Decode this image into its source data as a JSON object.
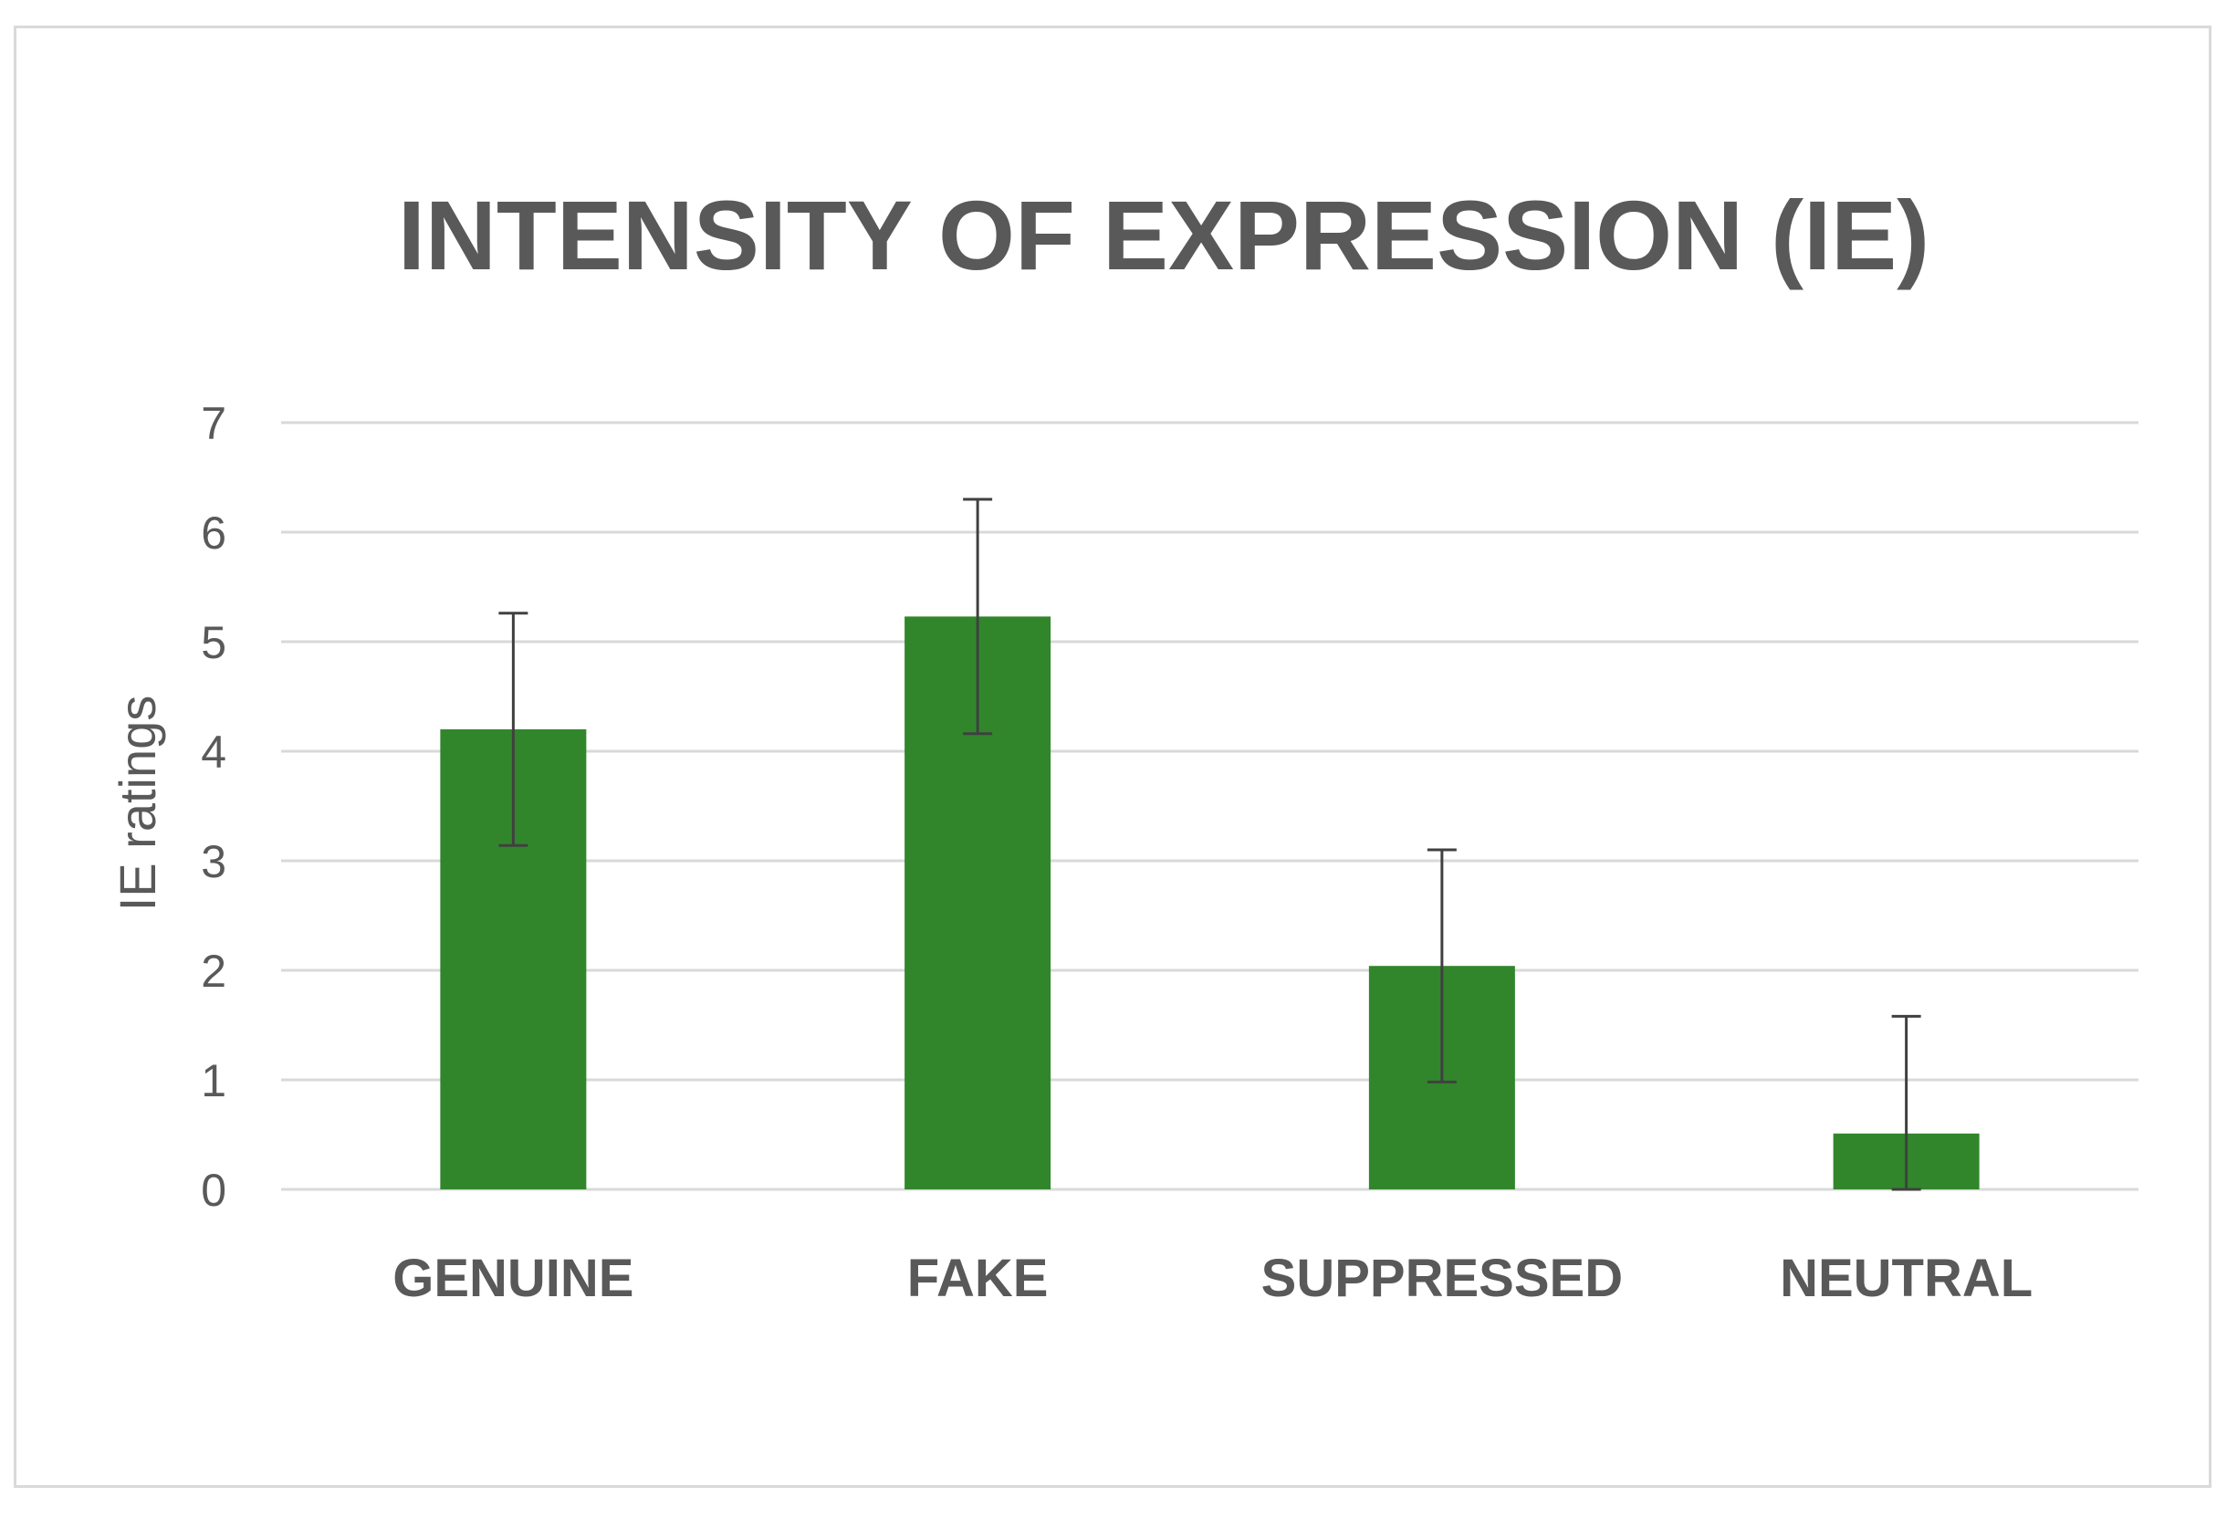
{
  "chart_data": {
    "type": "bar",
    "title": "INTENSITY OF EXPRESSION (IE)",
    "ylabel": "IE ratings",
    "xlabel": "",
    "categories": [
      "GENUINE",
      "FAKE",
      "SUPPRESSED",
      "NEUTRAL"
    ],
    "series": [
      {
        "values": [
          4.2,
          5.23,
          2.04,
          0.51
        ],
        "error": [
          1.06,
          1.07,
          1.06,
          1.07
        ]
      }
    ],
    "ylim": [
      0,
      7
    ],
    "yticks": [
      0,
      1,
      2,
      3,
      4,
      5,
      6,
      7
    ],
    "grid": true,
    "legend": "none",
    "colors": {
      "bar": "#31862c",
      "gridline": "#d9d9d9",
      "error_bar": "#404040",
      "text": "#595959"
    }
  }
}
